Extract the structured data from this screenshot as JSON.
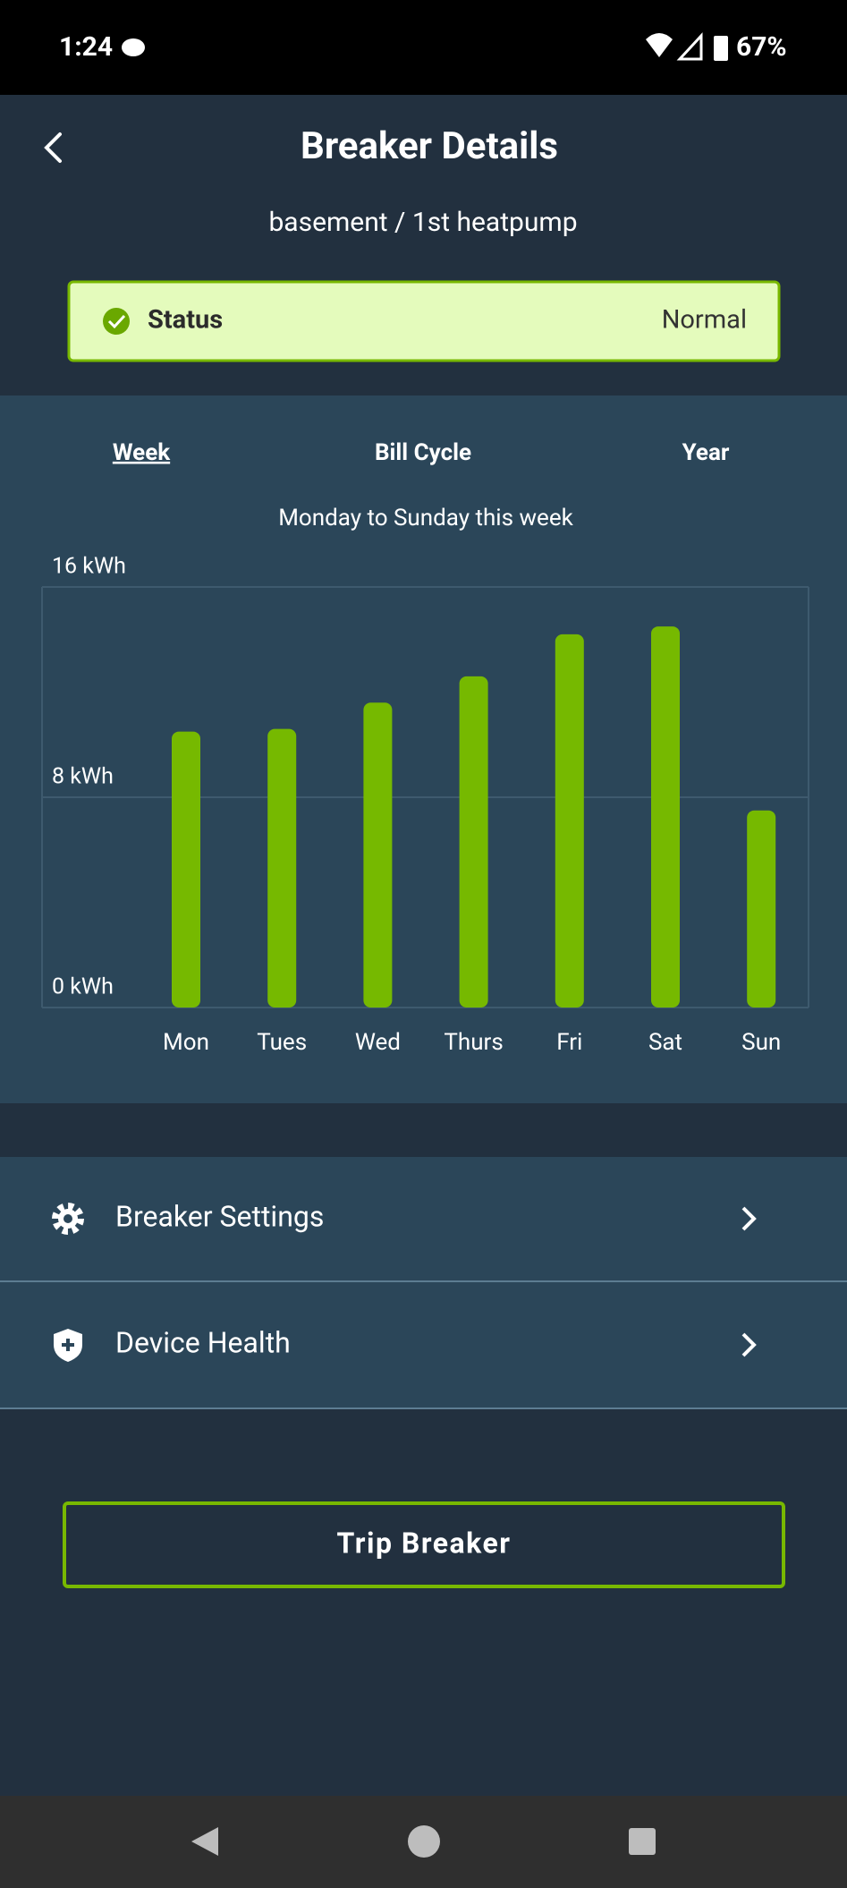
{
  "status_bar": {
    "time": "1:24",
    "battery": "67%"
  },
  "header": {
    "title": "Breaker Details",
    "subtitle": "basement / 1st heatpump"
  },
  "status": {
    "label": "Status",
    "value": "Normal"
  },
  "tabs": [
    "Week",
    "Bill Cycle",
    "Year"
  ],
  "chart_data": {
    "type": "bar",
    "subtitle": "Monday to Sunday this week",
    "categories": [
      "Mon",
      "Tues",
      "Wed",
      "Thurs",
      "Fri",
      "Sat",
      "Sun"
    ],
    "values": [
      10.5,
      10.6,
      11.6,
      12.6,
      14.2,
      14.5,
      7.5
    ],
    "color": "#76b900",
    "ylim": [
      0,
      16
    ],
    "yticks": [
      {
        "value": 0,
        "label": "0 kWh"
      },
      {
        "value": 8,
        "label": "8 kWh"
      },
      {
        "value": 16,
        "label": "16 kWh"
      }
    ],
    "grid": true
  },
  "menu": [
    "Breaker Settings",
    "Device Health"
  ],
  "button": "Trip Breaker"
}
